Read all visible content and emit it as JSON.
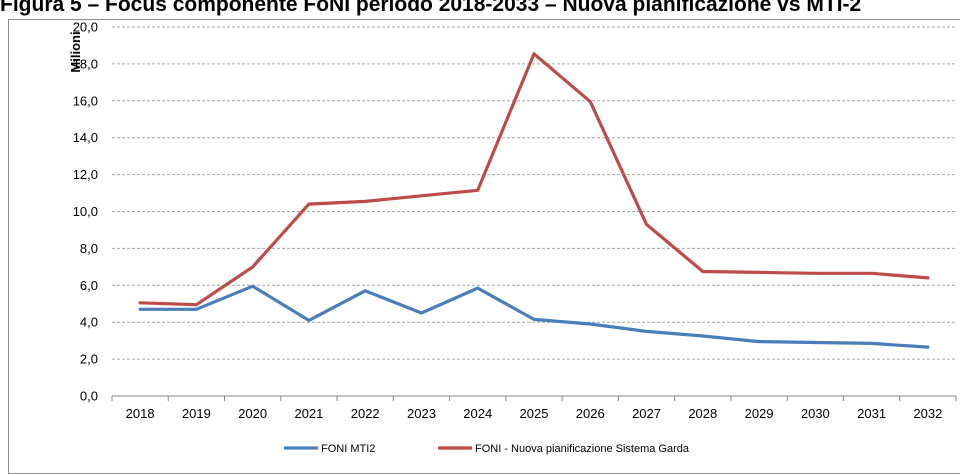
{
  "figure": {
    "title": "Figura 5 – Focus componente FoNI periodo 2018-2033 – Nuova pianificazione vs MTI-2"
  },
  "chart_data": {
    "type": "line",
    "title": "",
    "ylabel": "Milioni",
    "xlabel": "",
    "categories": [
      "2018",
      "2019",
      "2020",
      "2021",
      "2022",
      "2023",
      "2024",
      "2025",
      "2026",
      "2027",
      "2028",
      "2029",
      "2030",
      "2031",
      "2032"
    ],
    "ylim": [
      0,
      20
    ],
    "yticks": [
      "0,0",
      "2,0",
      "4,0",
      "6,0",
      "8,0",
      "10,0",
      "12,0",
      "14,0",
      "16,0",
      "18,0",
      "20,0"
    ],
    "grid": true,
    "legend": "bottom",
    "series": [
      {
        "name": "FONI MTI2",
        "color": "#4a7ebb",
        "values": [
          4.7,
          4.7,
          5.95,
          4.1,
          5.7,
          4.5,
          5.85,
          4.15,
          3.9,
          3.5,
          3.25,
          2.95,
          2.9,
          2.85,
          2.65
        ]
      },
      {
        "name": "FONI - Nuova pianificazione Sistema Garda",
        "color": "#be4b48",
        "values": [
          5.05,
          4.95,
          7.0,
          10.4,
          10.55,
          10.85,
          11.15,
          18.55,
          15.95,
          9.3,
          6.75,
          6.7,
          6.65,
          6.65,
          6.4
        ]
      }
    ]
  }
}
